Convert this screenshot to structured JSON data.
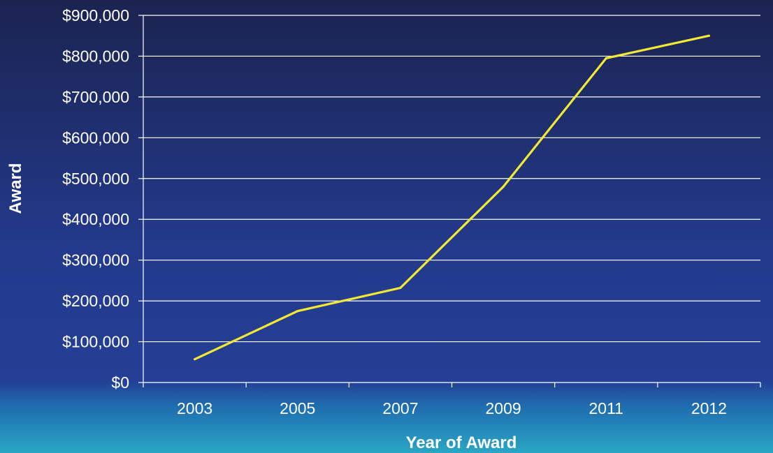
{
  "chart_data": {
    "type": "line",
    "title": "",
    "xlabel": "Year of Award",
    "ylabel": "Award",
    "categories": [
      "2003",
      "2005",
      "2007",
      "2009",
      "2011",
      "2012"
    ],
    "series": [
      {
        "values": [
          57000,
          175000,
          232000,
          480000,
          795000,
          850000
        ]
      }
    ],
    "ylim": [
      0,
      900000
    ],
    "yticks": [
      0,
      100000,
      200000,
      300000,
      400000,
      500000,
      600000,
      700000,
      800000,
      900000
    ],
    "ytick_labels": [
      "$0",
      "$100,000",
      "$200,000",
      "$300,000",
      "$400,000",
      "$500,000",
      "$600,000",
      "$700,000",
      "$800,000",
      "$900,000"
    ],
    "grid": true,
    "legend": "none",
    "colors": {
      "line": "#f2e934",
      "text": "#ffffff",
      "grid": "#ffffff",
      "bg_top": "#1b2350",
      "bg_mid": "#233a8c",
      "bg_bottom": "#2aa6c4"
    }
  }
}
